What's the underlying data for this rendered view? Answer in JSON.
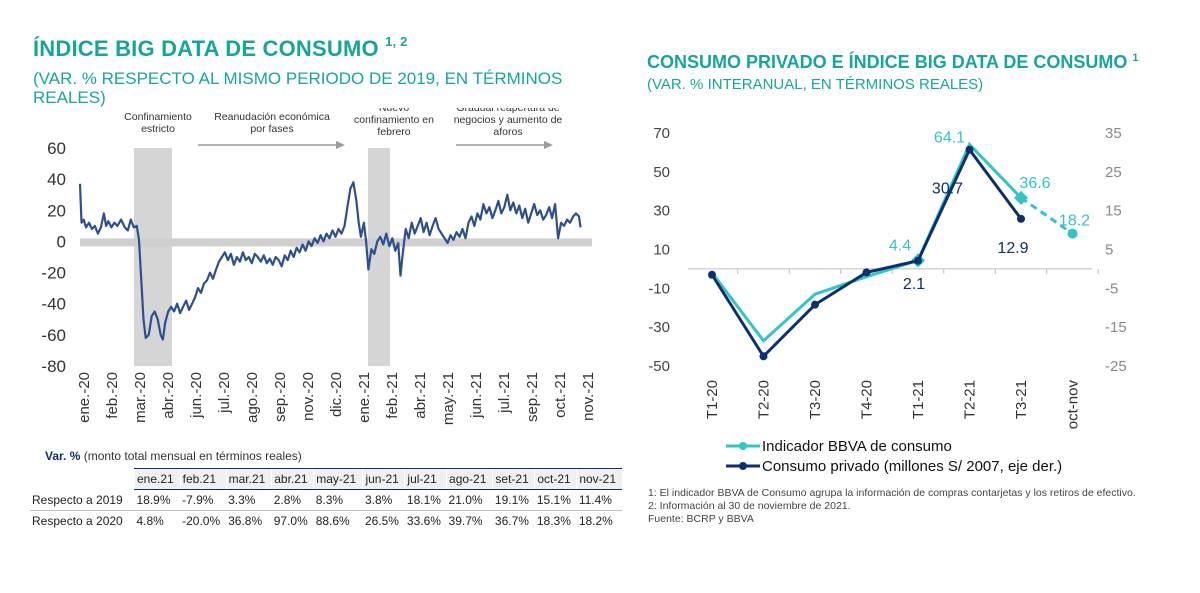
{
  "left": {
    "title": "ÍNDICE BIG DATA DE CONSUMO",
    "title_sup": "1, 2",
    "subtitle_line1": "(VAR. % RESPECTO AL MISMO PERIODO DE 2019, EN TÉRMINOS",
    "subtitle_line2": "REALES)",
    "annotations": [
      {
        "text": [
          "Confinamiento",
          "estricto"
        ]
      },
      {
        "text": [
          "Reanudación económica",
          "por fases"
        ]
      },
      {
        "text": [
          "Nuevo",
          "confinamiento en",
          "febrero"
        ]
      },
      {
        "text": [
          "Gradual reapertura de",
          "negocios y aumento de",
          "aforos"
        ]
      }
    ],
    "table_header_bold": "Var. %",
    "table_header_rest": " (monto total mensual en términos reales)",
    "table": {
      "columns": [
        "ene.21",
        "feb.21",
        "mar.21",
        "abr.21",
        "may-21",
        "jun-21",
        "jul-21",
        "ago-21",
        "set-21",
        "oct-21",
        "nov-21"
      ],
      "rows": [
        {
          "label": "Respecto a 2019",
          "values": [
            "18.9%",
            "-7.9%",
            "3.3%",
            "2.8%",
            "8.3%",
            "3.8%",
            "18.1%",
            "21.0%",
            "19.1%",
            "15.1%",
            "11.4%"
          ]
        },
        {
          "label": "Respecto a 2020",
          "values": [
            "4.8%",
            "-20.0%",
            "36.8%",
            "97.0%",
            "88.6%",
            "26.5%",
            "33.6%",
            "39.7%",
            "36.7%",
            "18.3%",
            "18.2%"
          ]
        }
      ]
    }
  },
  "right": {
    "title": "CONSUMO PRIVADO E ÍNDICE BIG DATA DE CONSUMO",
    "title_sup": "1",
    "subtitle": "(VAR. % INTERANUAL, EN TÉRMINOS REALES)",
    "legend": [
      "Indicador BBVA de consumo",
      "Consumo privado (millones S/ 2007, eje der.)"
    ],
    "notes": [
      "1: El indicador BBVA de Consumo agrupa la información de compras contarjetas y los retiros de efectivo.",
      "2: Información al 30 de noviembre de 2021.",
      "Fuente: BCRP y BBVA"
    ]
  },
  "chart_data": [
    {
      "type": "line",
      "title": "ÍNDICE BIG DATA DE CONSUMO",
      "ylim": [
        -80,
        60
      ],
      "yticks": [
        60,
        40,
        20,
        0,
        -20,
        -40,
        -60,
        -80
      ],
      "xlabels": [
        "ene.-20",
        "feb.-20",
        "mar.-20",
        "abr.-20",
        "jun.-20",
        "jul.-20",
        "ago.-20",
        "sep.-20",
        "nov.-20",
        "dic.-20",
        "ene.-21",
        "feb.-21",
        "abr.-21",
        "may.-21",
        "jun.-21",
        "jul.-21",
        "sep.-21",
        "oct.-21",
        "nov.-21"
      ],
      "shaded_periods": [
        "mar.-20 – abr.-20",
        "feb.-21"
      ],
      "series": [
        {
          "color": "#2e4f8f",
          "points": [
            [
              0,
              37
            ],
            [
              0.2,
              12
            ],
            [
              0.5,
              14
            ],
            [
              0.8,
              9
            ],
            [
              1.2,
              12
            ],
            [
              1.6,
              8
            ],
            [
              2,
              10
            ],
            [
              2.4,
              5
            ],
            [
              2.8,
              9
            ],
            [
              3.2,
              18
            ],
            [
              3.5,
              10
            ],
            [
              3.8,
              13
            ],
            [
              4.2,
              9
            ],
            [
              4.6,
              12
            ],
            [
              5,
              10
            ],
            [
              5.5,
              14
            ],
            [
              6,
              9
            ],
            [
              6.4,
              7
            ],
            [
              6.8,
              14
            ],
            [
              7.2,
              9
            ],
            [
              7.6,
              10
            ],
            [
              7.9,
              1
            ],
            [
              8.2,
              -25
            ],
            [
              8.5,
              -50
            ],
            [
              8.8,
              -62
            ],
            [
              9.2,
              -60
            ],
            [
              9.6,
              -48
            ],
            [
              10,
              -45
            ],
            [
              10.4,
              -50
            ],
            [
              10.8,
              -60
            ],
            [
              11.1,
              -63
            ],
            [
              11.4,
              -52
            ],
            [
              11.8,
              -45
            ],
            [
              12.2,
              -42
            ],
            [
              12.6,
              -45
            ],
            [
              13,
              -40
            ],
            [
              13.4,
              -46
            ],
            [
              13.8,
              -42
            ],
            [
              14.2,
              -38
            ],
            [
              14.6,
              -44
            ],
            [
              15,
              -40
            ],
            [
              15.4,
              -36
            ],
            [
              15.8,
              -30
            ],
            [
              16.2,
              -33
            ],
            [
              16.6,
              -27
            ],
            [
              17,
              -25
            ],
            [
              17.4,
              -20
            ],
            [
              17.8,
              -24
            ],
            [
              18.2,
              -18
            ],
            [
              18.6,
              -13
            ],
            [
              19,
              -10
            ],
            [
              19.4,
              -7
            ],
            [
              19.8,
              -12
            ],
            [
              20.2,
              -8
            ],
            [
              20.6,
              -15
            ],
            [
              21,
              -10
            ],
            [
              21.4,
              -13
            ],
            [
              21.8,
              -7
            ],
            [
              22.2,
              -12
            ],
            [
              22.6,
              -10
            ],
            [
              23,
              -14
            ],
            [
              23.4,
              -8
            ],
            [
              23.8,
              -10
            ],
            [
              24.2,
              -13
            ],
            [
              24.6,
              -9
            ],
            [
              25,
              -14
            ],
            [
              25.4,
              -11
            ],
            [
              25.8,
              -15
            ],
            [
              26.2,
              -10
            ],
            [
              26.6,
              -12
            ],
            [
              27,
              -16
            ],
            [
              27.4,
              -9
            ],
            [
              27.8,
              -12
            ],
            [
              28.2,
              -6
            ],
            [
              28.6,
              -10
            ],
            [
              29,
              -4
            ],
            [
              29.4,
              -7
            ],
            [
              29.8,
              -2
            ],
            [
              30.2,
              -6
            ],
            [
              30.6,
              0
            ],
            [
              31,
              -3
            ],
            [
              31.4,
              2
            ],
            [
              31.8,
              -1
            ],
            [
              32.2,
              4
            ],
            [
              32.6,
              0
            ],
            [
              33,
              5
            ],
            [
              33.4,
              2
            ],
            [
              33.8,
              7
            ],
            [
              34.2,
              3
            ],
            [
              34.6,
              8
            ],
            [
              35,
              5
            ],
            [
              35.4,
              10
            ],
            [
              35.8,
              22
            ],
            [
              36.2,
              34
            ],
            [
              36.6,
              38
            ],
            [
              37,
              26
            ],
            [
              37.3,
              12
            ],
            [
              37.6,
              3
            ],
            [
              38,
              12
            ],
            [
              38.3,
              0
            ],
            [
              38.6,
              -18
            ],
            [
              39,
              -5
            ],
            [
              39.4,
              -8
            ],
            [
              39.8,
              0
            ],
            [
              40.2,
              3
            ],
            [
              40.6,
              -2
            ],
            [
              41,
              5
            ],
            [
              41.4,
              -3
            ],
            [
              41.8,
              2
            ],
            [
              42.2,
              -6
            ],
            [
              42.6,
              -1
            ],
            [
              42.9,
              -22
            ],
            [
              43.2,
              -8
            ],
            [
              43.6,
              8
            ],
            [
              44,
              2
            ],
            [
              44.4,
              12
            ],
            [
              44.8,
              5
            ],
            [
              45.2,
              10
            ],
            [
              45.6,
              15
            ],
            [
              46,
              6
            ],
            [
              46.4,
              12
            ],
            [
              46.8,
              4
            ],
            [
              47.2,
              10
            ],
            [
              47.6,
              15
            ],
            [
              48,
              8
            ],
            [
              48.4,
              5
            ],
            [
              48.8,
              2
            ],
            [
              49.2,
              -1
            ],
            [
              49.6,
              4
            ],
            [
              50,
              1
            ],
            [
              50.4,
              6
            ],
            [
              50.8,
              3
            ],
            [
              51.2,
              8
            ],
            [
              51.6,
              2
            ],
            [
              52,
              12
            ],
            [
              52.4,
              16
            ],
            [
              52.8,
              10
            ],
            [
              53.2,
              18
            ],
            [
              53.6,
              14
            ],
            [
              54,
              24
            ],
            [
              54.4,
              18
            ],
            [
              54.8,
              22
            ],
            [
              55.2,
              15
            ],
            [
              55.6,
              20
            ],
            [
              56,
              26
            ],
            [
              56.4,
              18
            ],
            [
              56.8,
              22
            ],
            [
              57.2,
              30
            ],
            [
              57.6,
              20
            ],
            [
              58,
              25
            ],
            [
              58.4,
              18
            ],
            [
              58.8,
              23
            ],
            [
              59.2,
              15
            ],
            [
              59.6,
              21
            ],
            [
              60,
              12
            ],
            [
              60.4,
              18
            ],
            [
              60.8,
              24
            ],
            [
              61.2,
              17
            ],
            [
              61.6,
              20
            ],
            [
              62,
              14
            ],
            [
              62.4,
              17
            ],
            [
              62.8,
              22
            ],
            [
              63.2,
              15
            ],
            [
              63.6,
              24
            ],
            [
              64,
              2
            ],
            [
              64.4,
              12
            ],
            [
              64.8,
              10
            ],
            [
              65.2,
              14
            ],
            [
              65.6,
              12
            ],
            [
              66,
              16
            ],
            [
              66.4,
              18
            ],
            [
              66.8,
              16
            ],
            [
              67,
              9
            ]
          ]
        }
      ],
      "x_domain": [
        0,
        68
      ]
    },
    {
      "type": "line",
      "title": "CONSUMO PRIVADO E ÍNDICE BIG DATA DE CONSUMO",
      "categories": [
        "T1-20",
        "T2-20",
        "T3-20",
        "T4-20",
        "T1-21",
        "T2-21",
        "T3-21",
        "oct-nov"
      ],
      "ylim_left": [
        -50,
        70
      ],
      "yticks_left": [
        70,
        50,
        30,
        10,
        -10,
        -30,
        -50
      ],
      "ylim_right": [
        -25,
        35
      ],
      "yticks_right": [
        35,
        25,
        15,
        5,
        -5,
        -15,
        -25
      ],
      "series": [
        {
          "name": "Indicador BBVA de consumo",
          "axis": "left",
          "color": "#33c5c3",
          "values": [
            -2,
            -37,
            -13,
            -4,
            4.4,
            64.1,
            36.6,
            18.2
          ],
          "dashed_from_index": 6,
          "labels": {
            "4": "4.4",
            "5": "64.1",
            "6": "36.6",
            "7": "18.2"
          }
        },
        {
          "name": "Consumo privado (millones S/ 2007, eje der.)",
          "axis": "right",
          "color": "#0c2f6e",
          "values": [
            -1.5,
            -22.5,
            -9.2,
            -0.9,
            2.1,
            30.7,
            12.9,
            null
          ],
          "labels": {
            "4": "2.1",
            "5": "30.7",
            "6": "12.9"
          }
        }
      ]
    }
  ]
}
